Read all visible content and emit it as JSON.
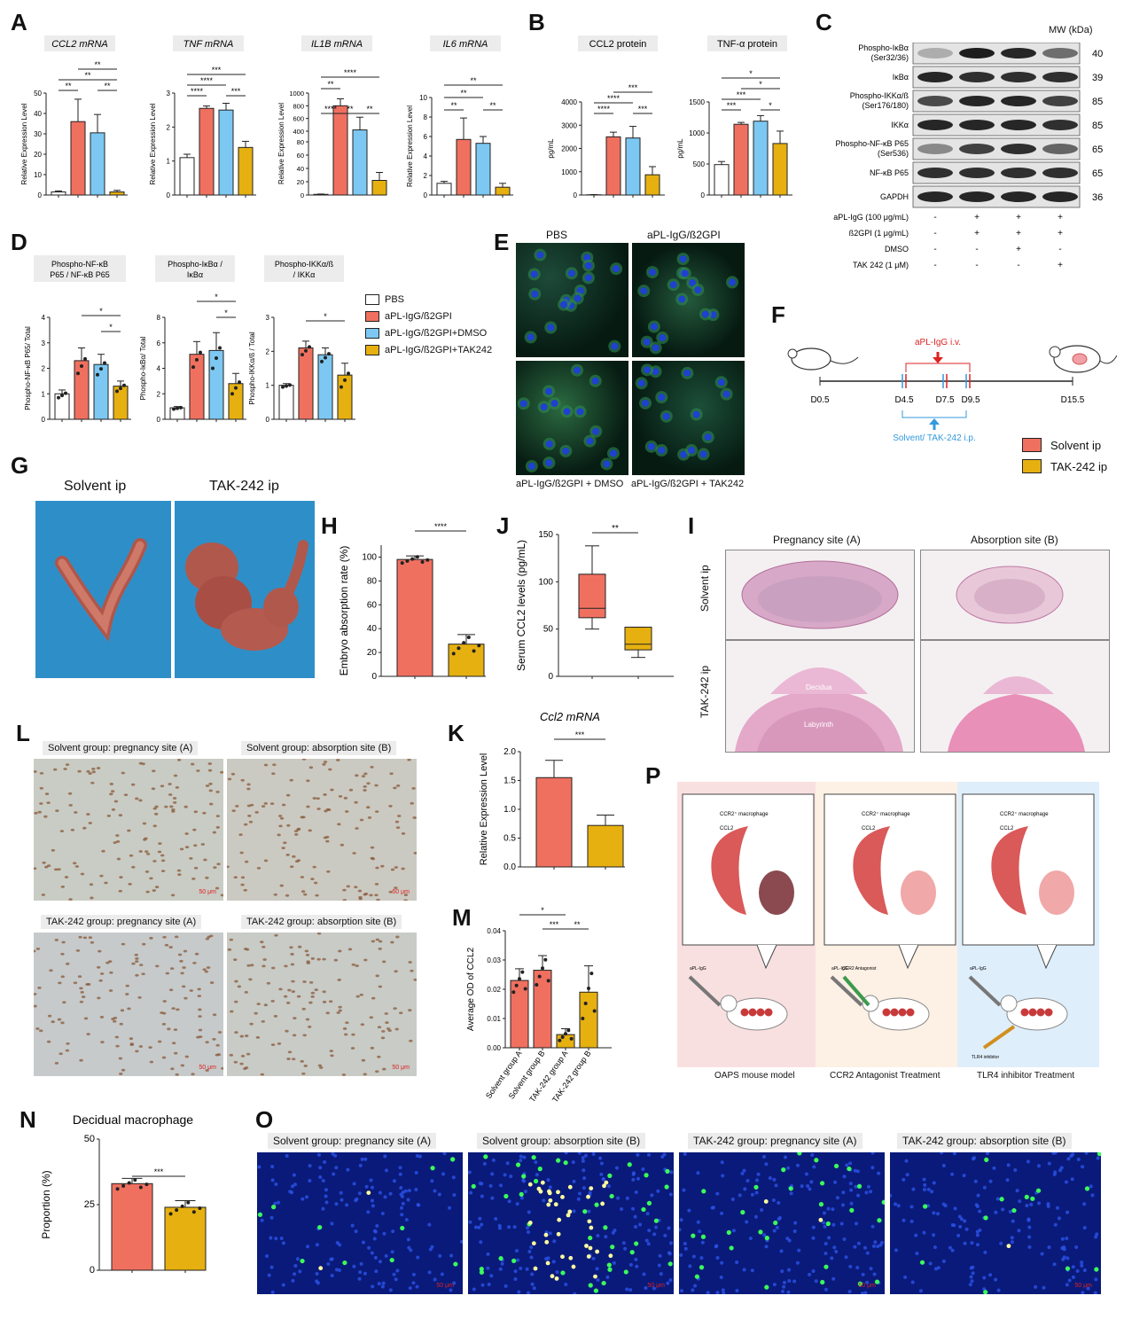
{
  "panel_letters": {
    "A": "A",
    "B": "B",
    "C": "C",
    "D": "D",
    "E": "E",
    "F": "F",
    "G": "G",
    "H": "H",
    "J": "J",
    "I": "I",
    "L": "L",
    "K": "K",
    "M": "M",
    "P": "P",
    "N": "N",
    "O": "O"
  },
  "colors": {
    "pbs": "#ffffff",
    "apl": "#f07060",
    "dmso": "#7cc8f2",
    "tak": "#e6b010",
    "solvent": "#f07060",
    "tak242": "#e6b010"
  },
  "sig": {
    "s1": "*",
    "s2": "**",
    "s3": "***",
    "s4": "****"
  },
  "charts": {
    "ccl2_mrna": {
      "title": "CCL2 mRNA",
      "ylabel": "Relative Expression Level",
      "ticks": [
        "0",
        "10",
        "20",
        "30",
        "40",
        "50"
      ],
      "ymax": 50,
      "values": [
        1.5,
        36,
        30.5,
        1.5
      ],
      "errors": [
        0.5,
        11,
        9,
        0.8
      ]
    },
    "tnf_mrna": {
      "title": "TNF mRNA",
      "ylabel": "Relative Expression Level",
      "ticks": [
        "0",
        "1",
        "2",
        "3"
      ],
      "ymax": 3,
      "values": [
        1.1,
        2.55,
        2.5,
        1.4
      ],
      "errors": [
        0.1,
        0.07,
        0.2,
        0.18
      ]
    },
    "il1b_mrna": {
      "title": "IL1B mRNA",
      "ylabel": "Relative Expression Level",
      "ticks": [
        "0",
        "20",
        "40",
        "60",
        "80",
        "800",
        "1000",
        "600",
        "400"
      ],
      "values": [
        1,
        800,
        420,
        22
      ],
      "errors": [
        0.5,
        110,
        200,
        12
      ]
    },
    "il6_mrna": {
      "title": "IL6 mRNA",
      "ylabel": "Relative Expression Level",
      "ticks": [
        "0",
        "2",
        "4",
        "6",
        "8",
        "10"
      ],
      "ymax": 10,
      "values": [
        1.2,
        5.7,
        5.3,
        0.8
      ],
      "errors": [
        0.2,
        2.2,
        0.7,
        0.4
      ]
    },
    "ccl2_protein": {
      "title": "CCL2 protein",
      "ylabel": "pg/mL",
      "ticks": [
        "0",
        "1000",
        "2000",
        "3000",
        "4000"
      ],
      "ymax": 4000,
      "values": [
        10,
        2500,
        2450,
        870
      ],
      "errors": [
        10,
        200,
        500,
        350
      ]
    },
    "tnfa_protein": {
      "title": "TNF-α protein",
      "ylabel": "pg/mL",
      "ticks": [
        "0",
        "500",
        "1000",
        "1500"
      ],
      "ymax": 1500,
      "values": [
        490,
        1140,
        1190,
        830
      ],
      "errors": [
        50,
        30,
        90,
        200
      ]
    },
    "d1": {
      "title": "Phospho-NF-κB P65 / NF-κB P65",
      "ylabel": "Phospho-NF-κB P65/ Total",
      "ticks": [
        "0",
        "1",
        "2",
        "3",
        "4"
      ],
      "ymax": 4,
      "values": [
        1.0,
        2.3,
        2.15,
        1.3
      ],
      "errors": [
        0.15,
        0.5,
        0.4,
        0.2
      ]
    },
    "d2": {
      "title": "Phospho-IκBα / IκBα",
      "ylabel": "Phospho-IκBα/ Total",
      "ticks": [
        "0",
        "2",
        "4",
        "6",
        "8"
      ],
      "ymax": 8,
      "values": [
        0.9,
        5.1,
        5.4,
        2.8
      ],
      "errors": [
        0.1,
        1.0,
        1.4,
        0.8
      ]
    },
    "d3": {
      "title": "Phospho-IKKα/ß / IKKα",
      "ylabel": "Phospho-IKKα/ß / Total",
      "ticks": [
        "0",
        "1",
        "2",
        "3"
      ],
      "ymax": 3,
      "values": [
        1.0,
        2.1,
        1.9,
        1.3
      ],
      "errors": [
        0.05,
        0.2,
        0.2,
        0.35
      ]
    },
    "h": {
      "ylabel": "Embryo absorption rate (%)",
      "ticks": [
        "0",
        "20",
        "40",
        "60",
        "80",
        "100"
      ],
      "ymax": 110,
      "values": [
        98,
        27
      ],
      "errors": [
        3,
        8
      ]
    },
    "j": {
      "ylabel": "Serum CCL2 levels (pg/mL)",
      "ticks": [
        "0",
        "50",
        "100",
        "150"
      ],
      "ymax": 150,
      "boxes": [
        {
          "min": 50,
          "q1": 62,
          "median": 72,
          "q3": 108,
          "max": 138
        },
        {
          "min": 20,
          "q1": 28,
          "median": 34,
          "q3": 52,
          "max": 52
        }
      ]
    },
    "k": {
      "title": "Ccl2 mRNA",
      "ylabel": "Relative Expression Level",
      "ticks": [
        "0.0",
        "0.5",
        "1.0",
        "1.5",
        "2.0"
      ],
      "ymax": 2.0,
      "values": [
        1.55,
        0.72
      ],
      "errors": [
        0.3,
        0.18
      ]
    },
    "m": {
      "ylabel": "Average OD of CCL2",
      "ticks": [
        "0.00",
        "0.01",
        "0.02",
        "0.03",
        "0.04"
      ],
      "ymax": 0.04,
      "categories": [
        "Solvent group A",
        "Solvent group B",
        "TAK-242 group A",
        "TAK-242 group B"
      ],
      "values": [
        0.023,
        0.0265,
        0.0045,
        0.019
      ],
      "errors": [
        0.004,
        0.005,
        0.002,
        0.009
      ]
    },
    "n": {
      "title": "Decidual macrophage",
      "ylabel": "Proportion (%)",
      "ticks": [
        "0",
        "25",
        "50"
      ],
      "ymax": 50,
      "values": [
        33,
        24
      ],
      "errors": [
        2,
        2.5
      ]
    }
  },
  "legend_d": [
    "PBS",
    "aPL-IgG/ß2GPI",
    "aPL-IgG/ß2GPI+DMSO",
    "aPL-IgG/ß2GPI+TAK242"
  ],
  "western": {
    "mw_header": "MW (kDa)",
    "rows": [
      {
        "label": "Phospho-IκBα\n(Ser32/36)",
        "mw": "40"
      },
      {
        "label": "IκBα",
        "mw": "39"
      },
      {
        "label": "Phospho-IKKα/ß\n(Ser176/180)",
        "mw": "85"
      },
      {
        "label": "IKKα",
        "mw": "85"
      },
      {
        "label": "Phospho-NF-κB P65\n(Ser536)",
        "mw": "65"
      },
      {
        "label": "NF-κB P65",
        "mw": "65"
      },
      {
        "label": "GAPDH",
        "mw": "36"
      }
    ],
    "treatments": [
      {
        "label": "aPL-IgG (100 μg/mL)",
        "signs": [
          "-",
          "+",
          "+",
          "+"
        ]
      },
      {
        "label": "ß2GPI (1 μg/mL)",
        "signs": [
          "-",
          "+",
          "+",
          "+"
        ]
      },
      {
        "label": "DMSO",
        "signs": [
          "-",
          "-",
          "+",
          "-"
        ]
      },
      {
        "label": "TAK 242 (1 μM)",
        "signs": [
          "-",
          "-",
          "-",
          "+"
        ]
      }
    ]
  },
  "panel_e": {
    "top_left": "PBS",
    "top_right": "aPL-IgG/ß2GPI",
    "bottom_left": "aPL-IgG/ß2GPI + DMSO",
    "bottom_right": "aPL-IgG/ß2GPI + TAK242"
  },
  "panel_f": {
    "apl": "aPL-IgG i.v.",
    "treat": "Solvent/ TAK-242 i.p.",
    "days": [
      "D0.5",
      "D4.5",
      "D7.5",
      "D9.5",
      "D15.5"
    ],
    "legend": [
      "Solvent ip",
      "TAK-242 ip"
    ]
  },
  "panel_g": {
    "left": "Solvent ip",
    "right": "TAK-242 ip"
  },
  "panel_i": {
    "col1": "Pregnancy site (A)",
    "col2": "Absorption site (B)",
    "row1": "Solvent ip",
    "row2": "TAK-242 ip",
    "lbl1": "Decidua",
    "lbl2": "Labyrinth"
  },
  "panel_l": [
    "Solvent group: pregnancy site (A)",
    "Solvent group: absorption site (B)",
    "TAK-242 group: pregnancy site (A)",
    "TAK-242 group: absorption site (B)"
  ],
  "scale": "50 μm",
  "panel_p": {
    "titles": [
      "OAPS mouse model",
      "CCR2 Antagonist Treatment",
      "TLR4 inhibitor Treatment"
    ],
    "ccr2": "CCR2⁺ macrophage",
    "ccl2": "CCL2",
    "aplg": "aPL-IgG",
    "antag": "CCR2 Antagonist",
    "tlr4": "TLR4 inhibitor"
  },
  "panel_o": [
    "Solvent group: pregnancy site (A)",
    "Solvent group: absorption site (B)",
    "TAK-242 group: pregnancy site (A)",
    "TAK-242 group: absorption site (B)"
  ]
}
